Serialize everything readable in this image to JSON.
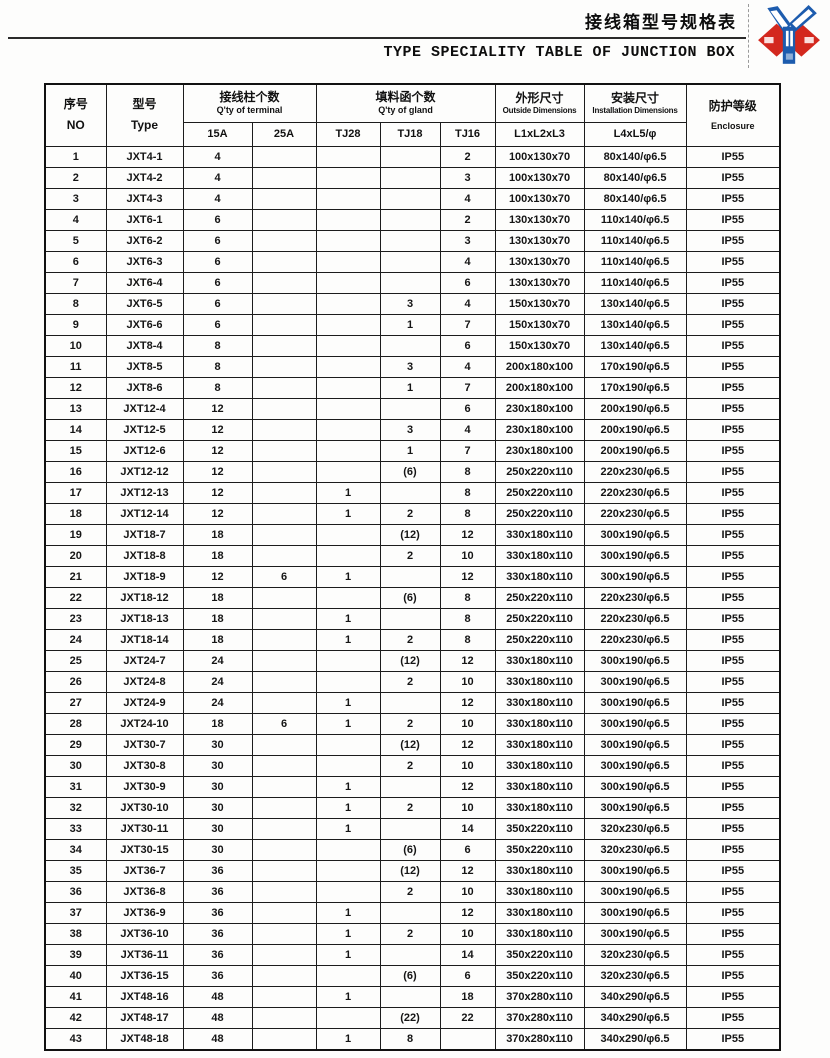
{
  "page": {
    "title_cn": "接线箱型号规格表",
    "title_en": "TYPE SPECIALITY TABLE OF JUNCTION BOX"
  },
  "logo": {
    "name": "brand-emblem",
    "colors": {
      "red": "#d3281e",
      "blue": "#1d5cae",
      "white": "#ffffff"
    }
  },
  "table": {
    "header": {
      "no_cn": "序号",
      "no_en": "NO",
      "type_cn": "型号",
      "type_en": "Type",
      "terminal_cn": "接线柱个数",
      "terminal_en": "Q'ty of terminal",
      "terminal_cols": {
        "a15": "15A",
        "a25": "25A"
      },
      "gland_cn": "填料函个数",
      "gland_en": "Q'ty of gland",
      "gland_cols": {
        "tj28": "TJ28",
        "tj18": "TJ18",
        "tj16": "TJ16"
      },
      "outside_cn": "外形尺寸",
      "outside_en": "Outside Dimensions",
      "outside_sub": "L1xL2xL3",
      "install_cn": "安装尺寸",
      "install_en": "Installation Dimensions",
      "install_sub": "L4xL5/φ",
      "enclosure_cn": "防护等级",
      "enclosure_en": "Enclosure"
    },
    "rows": [
      [
        "1",
        "JXT4-1",
        "4",
        "",
        "",
        "",
        "2",
        "100x130x70",
        "80x140/φ6.5",
        "IP55"
      ],
      [
        "2",
        "JXT4-2",
        "4",
        "",
        "",
        "",
        "3",
        "100x130x70",
        "80x140/φ6.5",
        "IP55"
      ],
      [
        "3",
        "JXT4-3",
        "4",
        "",
        "",
        "",
        "4",
        "100x130x70",
        "80x140/φ6.5",
        "IP55"
      ],
      [
        "4",
        "JXT6-1",
        "6",
        "",
        "",
        "",
        "2",
        "130x130x70",
        "110x140/φ6.5",
        "IP55"
      ],
      [
        "5",
        "JXT6-2",
        "6",
        "",
        "",
        "",
        "3",
        "130x130x70",
        "110x140/φ6.5",
        "IP55"
      ],
      [
        "6",
        "JXT6-3",
        "6",
        "",
        "",
        "",
        "4",
        "130x130x70",
        "110x140/φ6.5",
        "IP55"
      ],
      [
        "7",
        "JXT6-4",
        "6",
        "",
        "",
        "",
        "6",
        "130x130x70",
        "110x140/φ6.5",
        "IP55"
      ],
      [
        "8",
        "JXT6-5",
        "6",
        "",
        "",
        "3",
        "4",
        "150x130x70",
        "130x140/φ6.5",
        "IP55"
      ],
      [
        "9",
        "JXT6-6",
        "6",
        "",
        "",
        "1",
        "7",
        "150x130x70",
        "130x140/φ6.5",
        "IP55"
      ],
      [
        "10",
        "JXT8-4",
        "8",
        "",
        "",
        "",
        "6",
        "150x130x70",
        "130x140/φ6.5",
        "IP55"
      ],
      [
        "11",
        "JXT8-5",
        "8",
        "",
        "",
        "3",
        "4",
        "200x180x100",
        "170x190/φ6.5",
        "IP55"
      ],
      [
        "12",
        "JXT8-6",
        "8",
        "",
        "",
        "1",
        "7",
        "200x180x100",
        "170x190/φ6.5",
        "IP55"
      ],
      [
        "13",
        "JXT12-4",
        "12",
        "",
        "",
        "",
        "6",
        "230x180x100",
        "200x190/φ6.5",
        "IP55"
      ],
      [
        "14",
        "JXT12-5",
        "12",
        "",
        "",
        "3",
        "4",
        "230x180x100",
        "200x190/φ6.5",
        "IP55"
      ],
      [
        "15",
        "JXT12-6",
        "12",
        "",
        "",
        "1",
        "7",
        "230x180x100",
        "200x190/φ6.5",
        "IP55"
      ],
      [
        "16",
        "JXT12-12",
        "12",
        "",
        "",
        "(6)",
        "8",
        "250x220x110",
        "220x230/φ6.5",
        "IP55"
      ],
      [
        "17",
        "JXT12-13",
        "12",
        "",
        "1",
        "",
        "8",
        "250x220x110",
        "220x230/φ6.5",
        "IP55"
      ],
      [
        "18",
        "JXT12-14",
        "12",
        "",
        "1",
        "2",
        "8",
        "250x220x110",
        "220x230/φ6.5",
        "IP55"
      ],
      [
        "19",
        "JXT18-7",
        "18",
        "",
        "",
        "(12)",
        "12",
        "330x180x110",
        "300x190/φ6.5",
        "IP55"
      ],
      [
        "20",
        "JXT18-8",
        "18",
        "",
        "",
        "2",
        "10",
        "330x180x110",
        "300x190/φ6.5",
        "IP55"
      ],
      [
        "21",
        "JXT18-9",
        "12",
        "6",
        "1",
        "",
        "12",
        "330x180x110",
        "300x190/φ6.5",
        "IP55"
      ],
      [
        "22",
        "JXT18-12",
        "18",
        "",
        "",
        "(6)",
        "8",
        "250x220x110",
        "220x230/φ6.5",
        "IP55"
      ],
      [
        "23",
        "JXT18-13",
        "18",
        "",
        "1",
        "",
        "8",
        "250x220x110",
        "220x230/φ6.5",
        "IP55"
      ],
      [
        "24",
        "JXT18-14",
        "18",
        "",
        "1",
        "2",
        "8",
        "250x220x110",
        "220x230/φ6.5",
        "IP55"
      ],
      [
        "25",
        "JXT24-7",
        "24",
        "",
        "",
        "(12)",
        "12",
        "330x180x110",
        "300x190/φ6.5",
        "IP55"
      ],
      [
        "26",
        "JXT24-8",
        "24",
        "",
        "",
        "2",
        "10",
        "330x180x110",
        "300x190/φ6.5",
        "IP55"
      ],
      [
        "27",
        "JXT24-9",
        "24",
        "",
        "1",
        "",
        "12",
        "330x180x110",
        "300x190/φ6.5",
        "IP55"
      ],
      [
        "28",
        "JXT24-10",
        "18",
        "6",
        "1",
        "2",
        "10",
        "330x180x110",
        "300x190/φ6.5",
        "IP55"
      ],
      [
        "29",
        "JXT30-7",
        "30",
        "",
        "",
        "(12)",
        "12",
        "330x180x110",
        "300x190/φ6.5",
        "IP55"
      ],
      [
        "30",
        "JXT30-8",
        "30",
        "",
        "",
        "2",
        "10",
        "330x180x110",
        "300x190/φ6.5",
        "IP55"
      ],
      [
        "31",
        "JXT30-9",
        "30",
        "",
        "1",
        "",
        "12",
        "330x180x110",
        "300x190/φ6.5",
        "IP55"
      ],
      [
        "32",
        "JXT30-10",
        "30",
        "",
        "1",
        "2",
        "10",
        "330x180x110",
        "300x190/φ6.5",
        "IP55"
      ],
      [
        "33",
        "JXT30-11",
        "30",
        "",
        "1",
        "",
        "14",
        "350x220x110",
        "320x230/φ6.5",
        "IP55"
      ],
      [
        "34",
        "JXT30-15",
        "30",
        "",
        "",
        "(6)",
        "6",
        "350x220x110",
        "320x230/φ6.5",
        "IP55"
      ],
      [
        "35",
        "JXT36-7",
        "36",
        "",
        "",
        "(12)",
        "12",
        "330x180x110",
        "300x190/φ6.5",
        "IP55"
      ],
      [
        "36",
        "JXT36-8",
        "36",
        "",
        "",
        "2",
        "10",
        "330x180x110",
        "300x190/φ6.5",
        "IP55"
      ],
      [
        "37",
        "JXT36-9",
        "36",
        "",
        "1",
        "",
        "12",
        "330x180x110",
        "300x190/φ6.5",
        "IP55"
      ],
      [
        "38",
        "JXT36-10",
        "36",
        "",
        "1",
        "2",
        "10",
        "330x180x110",
        "300x190/φ6.5",
        "IP55"
      ],
      [
        "39",
        "JXT36-11",
        "36",
        "",
        "1",
        "",
        "14",
        "350x220x110",
        "320x230/φ6.5",
        "IP55"
      ],
      [
        "40",
        "JXT36-15",
        "36",
        "",
        "",
        "(6)",
        "6",
        "350x220x110",
        "320x230/φ6.5",
        "IP55"
      ],
      [
        "41",
        "JXT48-16",
        "48",
        "",
        "1",
        "",
        "18",
        "370x280x110",
        "340x290/φ6.5",
        "IP55"
      ],
      [
        "42",
        "JXT48-17",
        "48",
        "",
        "",
        "(22)",
        "22",
        "370x280x110",
        "340x290/φ6.5",
        "IP55"
      ],
      [
        "43",
        "JXT48-18",
        "48",
        "",
        "1",
        "8",
        "",
        "370x280x110",
        "340x290/φ6.5",
        "IP55"
      ]
    ]
  }
}
